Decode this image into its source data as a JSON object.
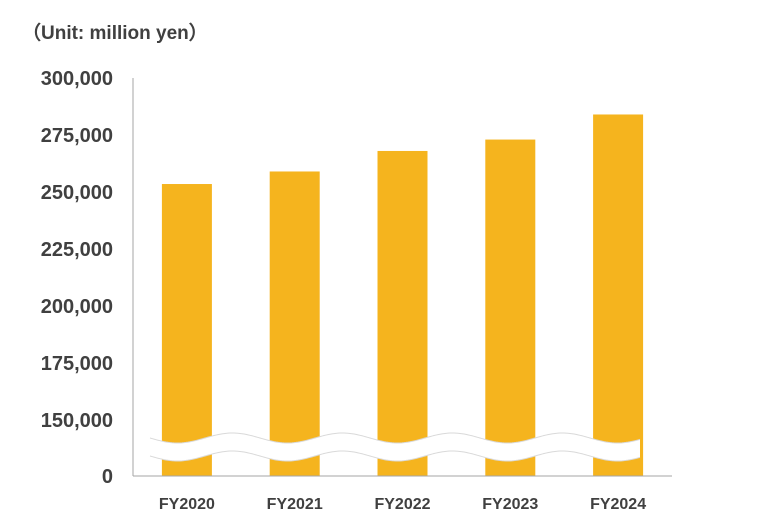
{
  "chart_data": {
    "type": "bar",
    "unit_label": "（Unit: million yen）",
    "categories": [
      "FY2020",
      "FY2021",
      "FY2022",
      "FY2023",
      "FY2024"
    ],
    "values": [
      253500,
      259000,
      268000,
      273000,
      284000
    ],
    "y_ticks": [
      "300,000",
      "275,000",
      "250,000",
      "225,000",
      "200,000",
      "175,000",
      "150,000",
      "0"
    ],
    "ylim": [
      150000,
      300000
    ],
    "axis_break": true,
    "bar_color": "#F5B41E",
    "axis_color": "#A6A6A6",
    "text_color": "#404040",
    "grid": false,
    "legend": "none"
  }
}
